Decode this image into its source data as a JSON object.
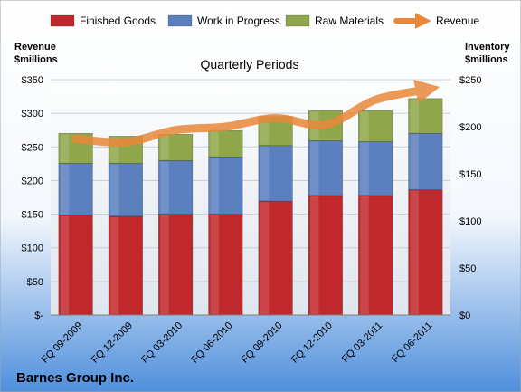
{
  "chart_data": {
    "type": "bar",
    "stacked": true,
    "subtitle": "Quarterly Periods",
    "company": "Barnes Group Inc.",
    "left_axis_title": [
      "Revenue",
      "$millions"
    ],
    "right_axis_title": [
      "Inventory",
      "$millions"
    ],
    "left_ticks": [
      "$-",
      "$50",
      "$100",
      "$150",
      "$200",
      "$250",
      "$300",
      "$350"
    ],
    "right_ticks": [
      "$0",
      "$50",
      "$100",
      "$150",
      "$200",
      "$250"
    ],
    "left_range": [
      0,
      350
    ],
    "right_range": [
      0,
      250
    ],
    "categories": [
      "FQ 09-2009",
      "FQ 12-2009",
      "FQ 03-2010",
      "FQ 06-2010",
      "FQ 09-2010",
      "FQ 12-2010",
      "FQ 03-2011",
      "FQ 06-2011"
    ],
    "series": [
      {
        "name": "Finished Goods",
        "axis": "right",
        "color": "#c0282c",
        "values": [
          106,
          105,
          107,
          107,
          121,
          127,
          127,
          133
        ]
      },
      {
        "name": "Work in Progress",
        "axis": "right",
        "color": "#5b7fbf",
        "values": [
          55,
          56,
          57,
          61,
          59,
          58,
          57,
          60
        ]
      },
      {
        "name": "Raw Materials",
        "axis": "right",
        "color": "#8fa74a",
        "values": [
          32,
          29,
          28,
          28,
          31,
          32,
          33,
          37
        ]
      },
      {
        "name": "Revenue",
        "axis": "left",
        "type": "line",
        "color": "#e9883a",
        "values": [
          262,
          257,
          275,
          280,
          293,
          283,
          320,
          335
        ]
      }
    ],
    "legend_position": "top",
    "grid": true
  }
}
